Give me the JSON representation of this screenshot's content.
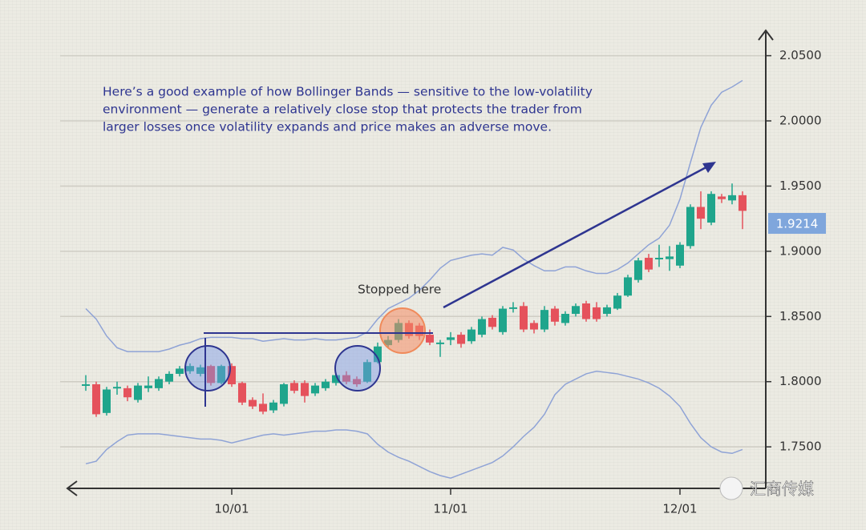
{
  "chart_data": {
    "type": "candlestick",
    "annotation_lines": [
      "Here’s a good example of how Bollinger Bands — sensitive to the low-volatility",
      "environment — generate a relatively close stop that protects the trader from",
      "larger losses once volatility expands and price makes an adverse move."
    ],
    "callout": "Stopped here",
    "last_price": 1.9214,
    "watermark": "汇商传媒",
    "categories": [
      null,
      null,
      null,
      null,
      null,
      null,
      null,
      null,
      null,
      null,
      null,
      null,
      null,
      null,
      "10/01",
      null,
      null,
      null,
      null,
      null,
      null,
      null,
      null,
      null,
      null,
      null,
      null,
      null,
      null,
      null,
      null,
      null,
      null,
      null,
      null,
      "11/01",
      null,
      null,
      null,
      null,
      null,
      null,
      null,
      null,
      null,
      null,
      null,
      null,
      null,
      null,
      null,
      null,
      null,
      null,
      null,
      null,
      null,
      "12/01",
      null,
      null,
      null,
      null,
      null,
      null
    ],
    "open": [
      1.797,
      1.798,
      1.776,
      1.795,
      1.795,
      1.786,
      1.795,
      1.795,
      1.8,
      1.806,
      1.808,
      1.806,
      1.812,
      1.799,
      1.812,
      1.799,
      1.786,
      1.783,
      1.778,
      1.783,
      1.799,
      1.799,
      1.791,
      1.795,
      1.799,
      1.805,
      1.802,
      1.8,
      1.815,
      1.828,
      1.832,
      1.845,
      1.843,
      1.836,
      1.829,
      1.832,
      1.836,
      1.831,
      1.836,
      1.849,
      1.838,
      1.856,
      1.858,
      1.845,
      1.84,
      1.856,
      1.845,
      1.852,
      1.86,
      1.857,
      1.852,
      1.856,
      1.866,
      1.878,
      1.895,
      1.894,
      1.894,
      1.889,
      1.904,
      1.934,
      1.922,
      1.942,
      1.939,
      1.943
    ],
    "high": [
      1.805,
      1.8,
      1.796,
      1.8,
      1.797,
      1.799,
      1.804,
      1.804,
      1.808,
      1.812,
      1.814,
      1.813,
      1.813,
      1.813,
      1.814,
      1.8,
      1.788,
      1.791,
      1.786,
      1.799,
      1.801,
      1.801,
      1.799,
      1.802,
      1.807,
      1.808,
      1.804,
      1.817,
      1.83,
      1.835,
      1.848,
      1.847,
      1.845,
      1.84,
      1.832,
      1.838,
      1.838,
      1.842,
      1.85,
      1.851,
      1.858,
      1.861,
      1.861,
      1.847,
      1.858,
      1.858,
      1.854,
      1.86,
      1.862,
      1.861,
      1.859,
      1.868,
      1.882,
      1.895,
      1.898,
      1.905,
      1.904,
      1.907,
      1.936,
      1.946,
      1.946,
      1.944,
      1.952,
      1.946
    ],
    "low": [
      1.793,
      1.773,
      1.774,
      1.79,
      1.785,
      1.784,
      1.792,
      1.793,
      1.798,
      1.804,
      1.806,
      1.804,
      1.797,
      1.798,
      1.796,
      1.782,
      1.779,
      1.775,
      1.776,
      1.781,
      1.791,
      1.784,
      1.789,
      1.793,
      1.797,
      1.798,
      1.796,
      1.799,
      1.814,
      1.826,
      1.83,
      1.833,
      1.832,
      1.828,
      1.819,
      1.828,
      1.826,
      1.829,
      1.834,
      1.84,
      1.836,
      1.853,
      1.838,
      1.837,
      1.838,
      1.843,
      1.843,
      1.85,
      1.846,
      1.846,
      1.85,
      1.855,
      1.865,
      1.876,
      1.884,
      1.888,
      1.885,
      1.887,
      1.902,
      1.917,
      1.92,
      1.937,
      1.936,
      1.917
    ],
    "close": [
      1.798,
      1.775,
      1.794,
      1.796,
      1.788,
      1.797,
      1.797,
      1.802,
      1.806,
      1.81,
      1.812,
      1.811,
      1.799,
      1.812,
      1.798,
      1.784,
      1.781,
      1.777,
      1.784,
      1.798,
      1.793,
      1.789,
      1.797,
      1.8,
      1.805,
      1.8,
      1.798,
      1.815,
      1.827,
      1.832,
      1.845,
      1.835,
      1.835,
      1.83,
      1.83,
      1.834,
      1.829,
      1.84,
      1.848,
      1.842,
      1.856,
      1.857,
      1.84,
      1.84,
      1.855,
      1.846,
      1.852,
      1.858,
      1.848,
      1.848,
      1.857,
      1.866,
      1.88,
      1.893,
      1.886,
      1.895,
      1.896,
      1.905,
      1.934,
      1.925,
      1.944,
      1.94,
      1.943,
      1.931
    ],
    "up_color": "#1fa58c",
    "down_color": "#e5525c",
    "bands": {
      "color": "#8fa3d6",
      "upper": [
        1.856,
        1.848,
        1.835,
        1.826,
        1.823,
        1.823,
        1.823,
        1.823,
        1.825,
        1.828,
        1.83,
        1.833,
        1.834,
        1.834,
        1.834,
        1.833,
        1.833,
        1.831,
        1.832,
        1.833,
        1.832,
        1.832,
        1.833,
        1.832,
        1.832,
        1.833,
        1.834,
        1.838,
        1.848,
        1.856,
        1.86,
        1.864,
        1.87,
        1.878,
        1.887,
        1.893,
        1.895,
        1.897,
        1.898,
        1.897,
        1.903,
        1.901,
        1.894,
        1.889,
        1.885,
        1.885,
        1.888,
        1.888,
        1.885,
        1.883,
        1.883,
        1.886,
        1.891,
        1.898,
        1.905,
        1.91,
        1.92,
        1.94,
        1.968,
        1.995,
        2.012,
        2.022,
        2.026,
        2.031
      ],
      "lower": [
        1.737,
        1.739,
        1.748,
        1.754,
        1.759,
        1.76,
        1.76,
        1.76,
        1.759,
        1.758,
        1.757,
        1.756,
        1.756,
        1.755,
        1.753,
        1.755,
        1.757,
        1.759,
        1.76,
        1.759,
        1.76,
        1.761,
        1.762,
        1.762,
        1.763,
        1.763,
        1.762,
        1.76,
        1.752,
        1.746,
        1.742,
        1.739,
        1.735,
        1.731,
        1.728,
        1.726,
        1.729,
        1.732,
        1.735,
        1.738,
        1.743,
        1.75,
        1.758,
        1.765,
        1.775,
        1.79,
        1.798,
        1.802,
        1.806,
        1.808,
        1.807,
        1.806,
        1.804,
        1.802,
        1.799,
        1.795,
        1.789,
        1.781,
        1.768,
        1.757,
        1.75,
        1.746,
        1.745,
        1.748
      ]
    },
    "ylim": [
      1.72,
      2.07
    ],
    "yticks": [
      {
        "value": 1.75,
        "label": "1.7500"
      },
      {
        "value": 1.8,
        "label": "1.8000"
      },
      {
        "value": 1.85,
        "label": "1.8500"
      },
      {
        "value": 1.9,
        "label": "1.9000"
      },
      {
        "value": 1.95,
        "label": "1.9500"
      },
      {
        "value": 2.0,
        "label": "2.0000"
      },
      {
        "value": 2.05,
        "label": "2.0500"
      }
    ],
    "grid": true
  }
}
